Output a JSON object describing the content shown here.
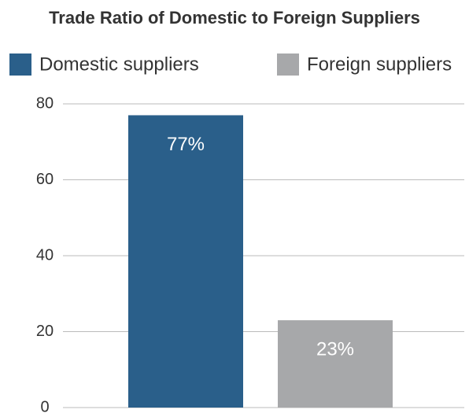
{
  "chart_data": {
    "type": "bar",
    "title": "Trade Ratio of Domestic to Foreign Suppliers",
    "categories": [
      null
    ],
    "series": [
      {
        "name": "Domestic suppliers",
        "color": "#2a5f8a",
        "values": [
          77
        ],
        "value_labels": [
          "77%"
        ]
      },
      {
        "name": "Foreign suppliers",
        "color": "#a7a8aa",
        "values": [
          23
        ],
        "value_labels": [
          "23%"
        ]
      }
    ],
    "ylim": [
      0,
      80
    ],
    "yticks": [
      0,
      20,
      40,
      60,
      80
    ],
    "grid": true,
    "legend": "top"
  }
}
